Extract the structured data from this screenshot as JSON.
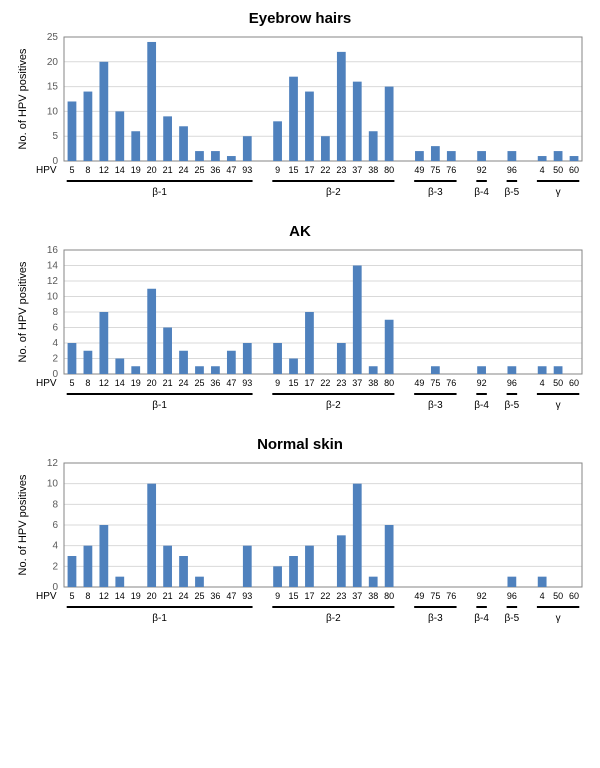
{
  "bar_color": "#4f81bd",
  "grid_color": "#d9d9d9",
  "border_color": "#868686",
  "background_color": "#ffffff",
  "y_label": "No. of HPV positives",
  "x_prefix": "HPV",
  "categories": [
    "5",
    "8",
    "12",
    "14",
    "19",
    "20",
    "21",
    "24",
    "25",
    "36",
    "47",
    "93",
    "9",
    "15",
    "17",
    "22",
    "23",
    "37",
    "38",
    "80",
    "49",
    "75",
    "76",
    "92",
    "96",
    "4",
    "50",
    "60"
  ],
  "groups": [
    {
      "label": "β-1",
      "start_cat": "5",
      "end_cat": "93"
    },
    {
      "label": "β-2",
      "start_cat": "9",
      "end_cat": "80"
    },
    {
      "label": "β-3",
      "start_cat": "49",
      "end_cat": "76"
    },
    {
      "label": "β-4",
      "start_cat": "92",
      "end_cat": "92"
    },
    {
      "label": "β-5",
      "start_cat": "96",
      "end_cat": "96"
    },
    {
      "label": "γ",
      "start_cat": "4",
      "end_cat": "60"
    }
  ],
  "gap_after": [
    "93",
    "80",
    "76",
    "92",
    "96"
  ],
  "panels": [
    {
      "id": "eyebrow",
      "title": "Eyebrow hairs",
      "ylim": [
        0,
        25
      ],
      "ytick_step": 5,
      "values": {
        "5": 12,
        "8": 14,
        "12": 20,
        "14": 10,
        "19": 6,
        "20": 24,
        "21": 9,
        "24": 7,
        "25": 2,
        "36": 2,
        "47": 1,
        "93": 5,
        "9": 8,
        "15": 17,
        "17": 14,
        "22": 5,
        "23": 22,
        "37": 16,
        "38": 6,
        "80": 15,
        "49": 2,
        "75": 3,
        "76": 2,
        "92": 2,
        "96": 2,
        "4": 1,
        "50": 2,
        "60": 1
      }
    },
    {
      "id": "ak",
      "title": "AK",
      "ylim": [
        0,
        16
      ],
      "ytick_step": 2,
      "values": {
        "5": 4,
        "8": 3,
        "12": 8,
        "14": 2,
        "19": 1,
        "20": 11,
        "21": 6,
        "24": 3,
        "25": 1,
        "36": 1,
        "47": 3,
        "93": 4,
        "9": 4,
        "15": 2,
        "17": 8,
        "22": null,
        "23": 4,
        "37": 14,
        "38": 1,
        "80": 7,
        "49": null,
        "75": 1,
        "76": null,
        "92": 1,
        "96": 1,
        "4": 1,
        "50": 1,
        "60": null
      }
    },
    {
      "id": "normal",
      "title": "Normal skin",
      "ylim": [
        0,
        12
      ],
      "ytick_step": 2,
      "values": {
        "5": 3,
        "8": 4,
        "12": 6,
        "14": 1,
        "19": null,
        "20": 10,
        "21": 4,
        "24": 3,
        "25": 1,
        "36": null,
        "47": null,
        "93": 4,
        "9": 2,
        "15": 3,
        "17": 4,
        "22": null,
        "23": 5,
        "37": 10,
        "38": 1,
        "80": 6,
        "49": null,
        "75": null,
        "76": null,
        "92": null,
        "96": 1,
        "4": 1,
        "50": null,
        "60": null
      }
    }
  ],
  "title_fontsize": 15,
  "axis_label_fontsize": 11,
  "tick_fontsize": 10,
  "category_fontsize": 9,
  "bar_width_ratio": 0.55
}
